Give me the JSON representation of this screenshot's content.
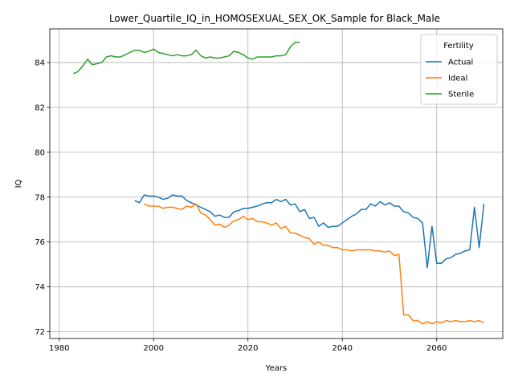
{
  "chart_data": {
    "type": "line",
    "title": "Lower_Quartile_IQ_in_HOMOSEXUAL_SEX_OK_Sample for Black_Male",
    "xlabel": "Years",
    "ylabel": "IQ",
    "xlim": [
      1978,
      2074
    ],
    "ylim": [
      71.7,
      85.5
    ],
    "xticks": [
      1980,
      2000,
      2020,
      2040,
      2060
    ],
    "yticks": [
      72,
      74,
      76,
      78,
      80,
      82,
      84
    ],
    "grid": true,
    "legend": {
      "title": "Fertility",
      "position": "top-right"
    },
    "series": [
      {
        "name": "Actual",
        "color": "#1f77b4",
        "x": [
          1996,
          1997,
          1998,
          1999,
          2000,
          2001,
          2002,
          2003,
          2004,
          2005,
          2006,
          2007,
          2008,
          2009,
          2010,
          2011,
          2012,
          2013,
          2014,
          2015,
          2016,
          2017,
          2018,
          2019,
          2020,
          2021,
          2022,
          2023,
          2024,
          2025,
          2026,
          2027,
          2028,
          2029,
          2030,
          2031,
          2032,
          2033,
          2034,
          2035,
          2036,
          2037,
          2038,
          2039,
          2040,
          2041,
          2042,
          2043,
          2044,
          2045,
          2046,
          2047,
          2048,
          2049,
          2050,
          2051,
          2052,
          2053,
          2054,
          2055,
          2056,
          2057,
          2058,
          2059,
          2060,
          2061,
          2062,
          2063,
          2064,
          2065,
          2066,
          2067,
          2068,
          2069,
          2070
        ],
        "values": [
          77.85,
          77.75,
          78.1,
          78.05,
          78.05,
          78.0,
          77.9,
          77.95,
          78.1,
          78.05,
          78.05,
          77.85,
          77.75,
          77.65,
          77.55,
          77.45,
          77.35,
          77.15,
          77.2,
          77.1,
          77.1,
          77.35,
          77.4,
          77.5,
          77.5,
          77.55,
          77.6,
          77.7,
          77.75,
          77.75,
          77.9,
          77.8,
          77.9,
          77.65,
          77.7,
          77.35,
          77.45,
          77.05,
          77.1,
          76.7,
          76.85,
          76.65,
          76.7,
          76.7,
          76.85,
          77.0,
          77.15,
          77.25,
          77.45,
          77.45,
          77.7,
          77.6,
          77.8,
          77.65,
          77.75,
          77.6,
          77.6,
          77.35,
          77.3,
          77.1,
          77.05,
          76.85,
          74.85,
          76.7,
          75.05,
          75.05,
          75.25,
          75.3,
          75.45,
          75.5,
          75.6,
          75.65,
          77.55,
          75.75,
          77.7
        ]
      },
      {
        "name": "Ideal",
        "color": "#ff7f0e",
        "x": [
          1998,
          1999,
          2000,
          2001,
          2002,
          2003,
          2004,
          2005,
          2006,
          2007,
          2008,
          2009,
          2010,
          2011,
          2012,
          2013,
          2014,
          2015,
          2016,
          2017,
          2018,
          2019,
          2020,
          2021,
          2022,
          2023,
          2024,
          2025,
          2026,
          2027,
          2028,
          2029,
          2030,
          2031,
          2032,
          2033,
          2034,
          2035,
          2036,
          2037,
          2038,
          2039,
          2040,
          2041,
          2042,
          2043,
          2044,
          2045,
          2046,
          2047,
          2048,
          2049,
          2050,
          2051,
          2052,
          2053,
          2054,
          2055,
          2056,
          2057,
          2058,
          2059,
          2060,
          2061,
          2062,
          2063,
          2064,
          2065,
          2066,
          2067,
          2068,
          2069,
          2070
        ],
        "values": [
          77.7,
          77.6,
          77.6,
          77.6,
          77.5,
          77.55,
          77.55,
          77.5,
          77.45,
          77.6,
          77.55,
          77.7,
          77.3,
          77.2,
          77.0,
          76.75,
          76.8,
          76.65,
          76.75,
          76.95,
          77.0,
          77.15,
          77.0,
          77.05,
          76.9,
          76.9,
          76.85,
          76.75,
          76.85,
          76.6,
          76.7,
          76.4,
          76.4,
          76.3,
          76.2,
          76.15,
          75.9,
          76.0,
          75.85,
          75.85,
          75.75,
          75.75,
          75.65,
          75.65,
          75.6,
          75.65,
          75.65,
          75.65,
          75.65,
          75.6,
          75.6,
          75.55,
          75.6,
          75.4,
          75.45,
          72.75,
          72.75,
          72.5,
          72.5,
          72.35,
          72.45,
          72.35,
          72.45,
          72.4,
          72.5,
          72.45,
          72.5,
          72.45,
          72.45,
          72.5,
          72.45,
          72.5,
          72.4
        ]
      },
      {
        "name": "Sterile",
        "color": "#2ca02c",
        "x": [
          1983,
          1984,
          1985,
          1986,
          1987,
          1988,
          1989,
          1990,
          1991,
          1992,
          1993,
          1994,
          1995,
          1996,
          1997,
          1998,
          1999,
          2000,
          2001,
          2002,
          2003,
          2004,
          2005,
          2006,
          2007,
          2008,
          2009,
          2010,
          2011,
          2012,
          2013,
          2014,
          2015,
          2016,
          2017,
          2018,
          2019,
          2020,
          2021,
          2022,
          2023,
          2024,
          2025,
          2026,
          2027,
          2028,
          2029,
          2030,
          2031
        ],
        "values": [
          83.5,
          83.6,
          83.85,
          84.15,
          83.9,
          83.95,
          84.0,
          84.25,
          84.3,
          84.25,
          84.25,
          84.35,
          84.45,
          84.55,
          84.55,
          84.45,
          84.5,
          84.6,
          84.45,
          84.4,
          84.35,
          84.3,
          84.35,
          84.3,
          84.3,
          84.35,
          84.55,
          84.3,
          84.2,
          84.25,
          84.2,
          84.2,
          84.25,
          84.3,
          84.5,
          84.45,
          84.35,
          84.2,
          84.15,
          84.25,
          84.25,
          84.25,
          84.25,
          84.3,
          84.3,
          84.35,
          84.7,
          84.9,
          84.9
        ]
      }
    ]
  }
}
